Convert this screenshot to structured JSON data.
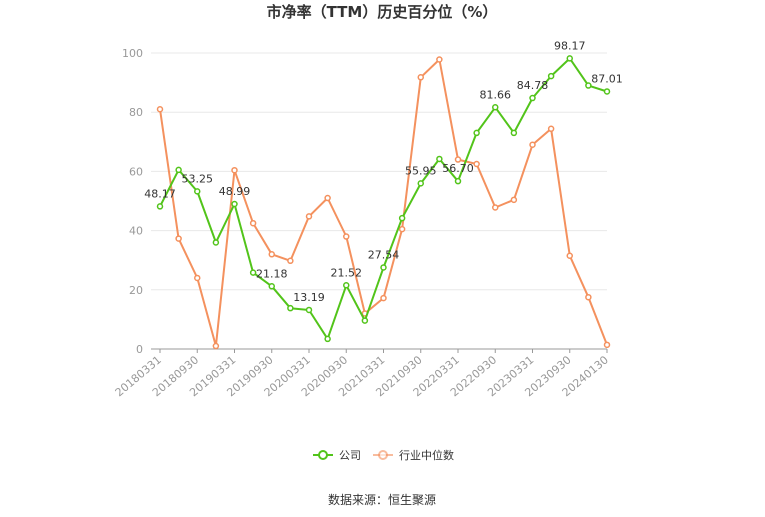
{
  "chart_data": {
    "type": "line",
    "title": "市净率（TTM）历史百分位（%）",
    "ylim": [
      0,
      100
    ],
    "yticks": [
      0,
      20,
      40,
      60,
      80,
      100
    ],
    "grid": true,
    "legend_position": "bottom",
    "x_tick_labels": [
      "20180331",
      "20180930",
      "20190331",
      "20190930",
      "20200331",
      "20200930",
      "20210331",
      "20210930",
      "20220331",
      "20220930",
      "20230331",
      "20230930",
      "20240130"
    ],
    "n_points": 25,
    "series": [
      {
        "name": "公司",
        "color": "#52c41a",
        "values": [
          48.17,
          60.5,
          53.25,
          36.0,
          48.99,
          25.8,
          21.18,
          13.8,
          13.19,
          3.4,
          21.52,
          9.6,
          27.54,
          44.2,
          55.95,
          64.2,
          56.7,
          73.0,
          81.66,
          73.0,
          84.78,
          92.2,
          98.17,
          89.0,
          87.01
        ],
        "data_labels": {
          "0": "48.17",
          "2": "53.25",
          "4": "48.99",
          "6": "21.18",
          "8": "13.19",
          "10": "21.52",
          "12": "27.54",
          "14": "55.95",
          "16": "56.70",
          "18": "81.66",
          "20": "84.78",
          "22": "98.17",
          "24": "87.01"
        }
      },
      {
        "name": "行业中位数",
        "color": "#f4915e",
        "values": [
          81.0,
          37.3,
          24.0,
          1.0,
          60.4,
          42.5,
          32.0,
          29.8,
          44.8,
          51.0,
          38.0,
          12.0,
          17.2,
          40.5,
          91.8,
          97.8,
          64.0,
          62.5,
          47.8,
          50.4,
          69.0,
          74.4,
          31.5,
          17.5,
          1.4
        ]
      }
    ]
  },
  "source_text": "数据来源：恒生聚源"
}
